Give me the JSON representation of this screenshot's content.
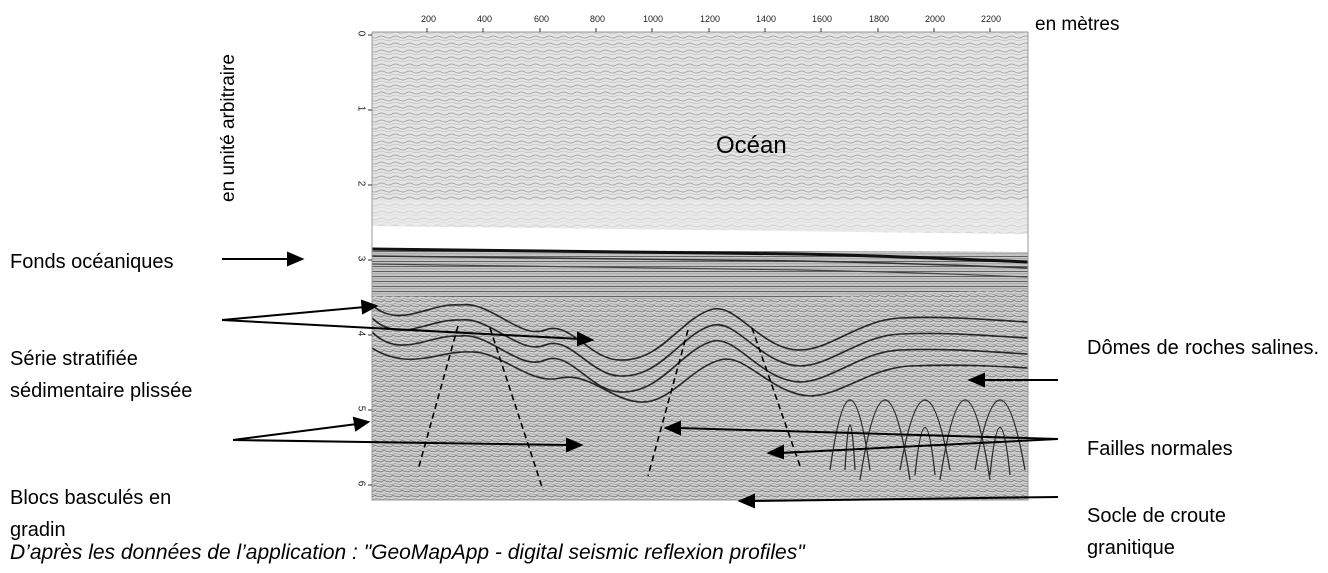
{
  "axes": {
    "x_unit": "en mètres",
    "x_ticks": [
      "200",
      "400",
      "600",
      "800",
      "1000",
      "1200",
      "1400",
      "1600",
      "1800",
      "2000",
      "2200"
    ],
    "y_unit": "en unité arbitraire",
    "y_ticks": [
      "0",
      "1",
      "2",
      "3",
      "4",
      "5",
      "6"
    ]
  },
  "labels": {
    "ocean": "Océan",
    "fonds": "Fonds océaniques",
    "serie": "Série stratifiée sédimentaire plissée",
    "blocs": "Blocs basculés en gradin",
    "domes": "Dômes de roches salines.",
    "failles": "Failles normales",
    "socle": "Socle de croute granitique"
  },
  "caption": "D’après les données de l’application : \"GeoMapApp - digital seismic reflexion profiles\""
}
